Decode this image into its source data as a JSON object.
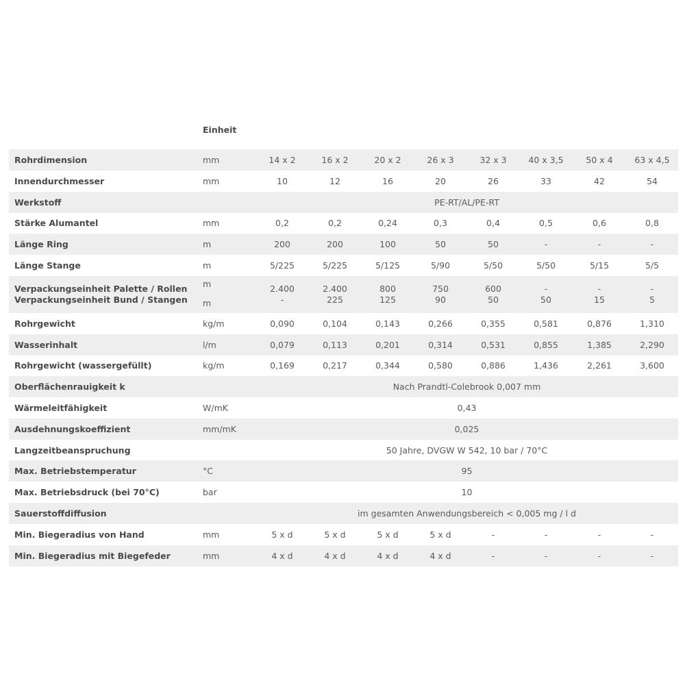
{
  "header": {
    "unit_column": "Einheit"
  },
  "rows": [
    {
      "label": "Rohrdimension",
      "unit": "mm",
      "values": [
        "14 x 2",
        "16 x 2",
        "20 x 2",
        "26 x 3",
        "32 x 3",
        "40 x 3,5",
        "50 x 4",
        "63 x 4,5"
      ]
    },
    {
      "label": "Innendurchmesser",
      "unit": "mm",
      "values": [
        "10",
        "12",
        "16",
        "20",
        "26",
        "33",
        "42",
        "54"
      ]
    },
    {
      "label": "Werkstoff",
      "unit": "",
      "span": "PE-RT/AL/PE-RT"
    },
    {
      "label": "Stärke Alumantel",
      "unit": "mm",
      "values": [
        "0,2",
        "0,2",
        "0,24",
        "0,3",
        "0,4",
        "0,5",
        "0,6",
        "0,8"
      ]
    },
    {
      "label": "Länge Ring",
      "unit": "m",
      "values": [
        "200",
        "200",
        "100",
        "50",
        "50",
        "-",
        "-",
        "-"
      ]
    },
    {
      "label": "Länge Stange",
      "unit": "m",
      "values": [
        "5/225",
        "5/225",
        "5/125",
        "5/90",
        "5/50",
        "5/50",
        "5/15",
        "5/5"
      ]
    },
    {
      "label": "Verpackungseinheit Palette / Rollen",
      "label2": "Verpackungseinheit Bund / Stangen",
      "unit": "m",
      "unit2": "m",
      "values": [
        "2.400",
        "2.400",
        "800",
        "750",
        "600",
        "-",
        "-",
        "-"
      ],
      "values2": [
        "-",
        "225",
        "125",
        "90",
        "50",
        "50",
        "15",
        "5"
      ]
    },
    {
      "label": "Rohrgewicht",
      "unit": "kg/m",
      "values": [
        "0,090",
        "0,104",
        "0,143",
        "0,266",
        "0,355",
        "0,581",
        "0,876",
        "1,310"
      ]
    },
    {
      "label": "Wasserinhalt",
      "unit": "l/m",
      "values": [
        "0,079",
        "0,113",
        "0,201",
        "0,314",
        "0,531",
        "0,855",
        "1,385",
        "2,290"
      ]
    },
    {
      "label": "Rohrgewicht (wassergefüllt)",
      "unit": "kg/m",
      "values": [
        "0,169",
        "0,217",
        "0,344",
        "0,580",
        "0,886",
        "1,436",
        "2,261",
        "3,600"
      ]
    },
    {
      "label": "Oberflächenrauigkeit k",
      "unit": "",
      "span": "Nach Prandtl-Colebrook 0,007 mm"
    },
    {
      "label": "Wärmeleitfähigkeit",
      "unit": "W/mK",
      "span": "0,43"
    },
    {
      "label": "Ausdehnungskoeffizient",
      "unit": "mm/mK",
      "span": "0,025"
    },
    {
      "label": "Langzeitbeanspruchung",
      "unit": "",
      "span": "50 Jahre, DVGW W 542, 10 bar / 70°C"
    },
    {
      "label": "Max. Betriebstemperatur",
      "unit": "°C",
      "span": "95"
    },
    {
      "label": "Max. Betriebsdruck (bei 70°C)",
      "unit": "bar",
      "span": "10"
    },
    {
      "label": "Sauerstoffdiffusion",
      "unit": "",
      "span": "im gesamten Anwendungsbereich < 0,005 mg / l d"
    },
    {
      "label": "Min. Biegeradius von Hand",
      "unit": "mm",
      "values": [
        "5 x d",
        "5 x d",
        "5 x d",
        "5 x d",
        "-",
        "-",
        "-",
        "-"
      ]
    },
    {
      "label": "Min. Biegeradius mit Biegefeder",
      "unit": "mm",
      "values": [
        "4 x d",
        "4 x d",
        "4 x d",
        "4 x d",
        "-",
        "-",
        "-",
        "-"
      ]
    }
  ]
}
